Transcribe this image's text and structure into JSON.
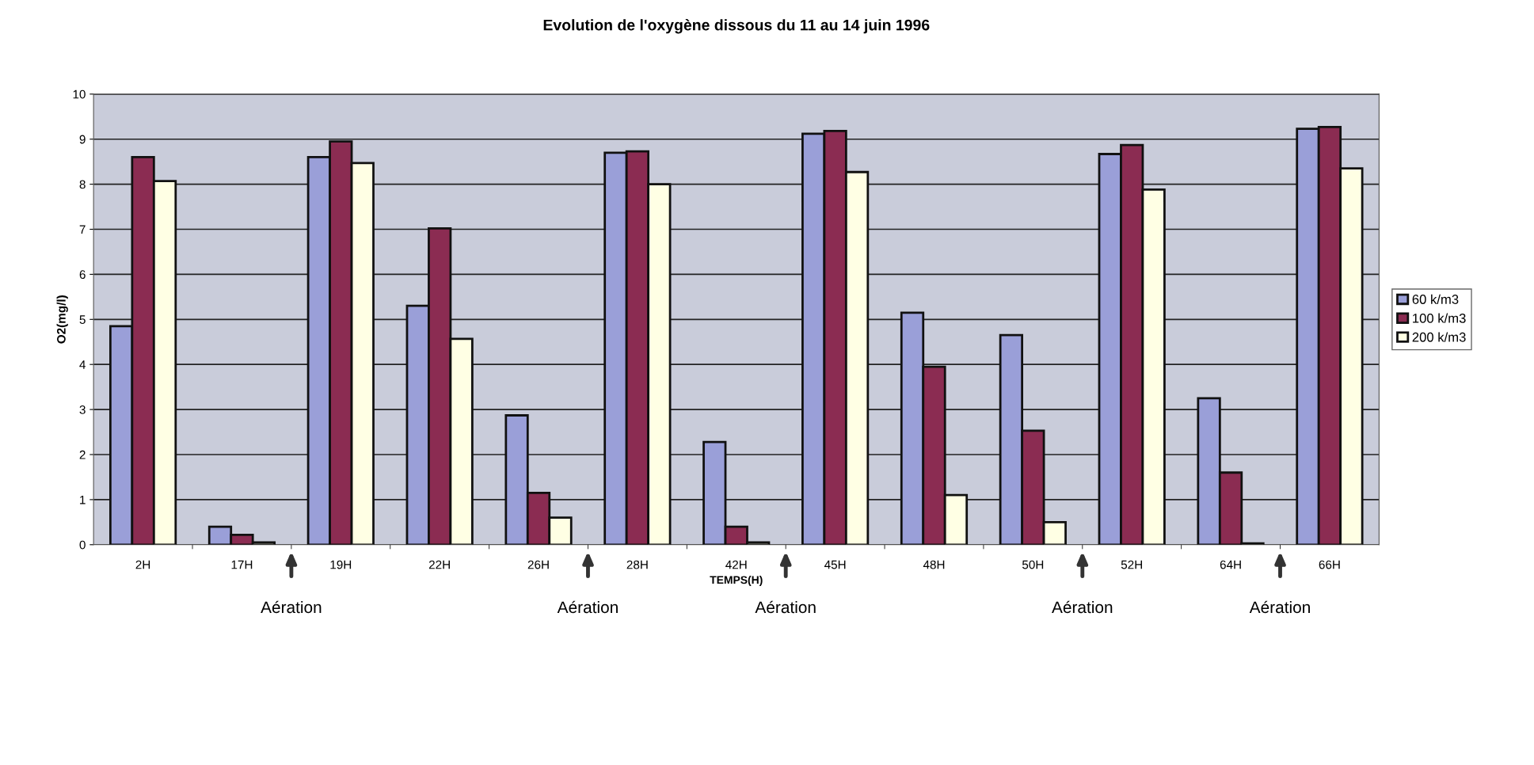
{
  "chart_data": {
    "type": "bar",
    "title": "Evolution de l'oxygène dissous du 11 au 14 juin 1996",
    "xlabel": "TEMPS(H)",
    "ylabel": "O2(mg/l)",
    "categories": [
      "2H",
      "17H",
      "19H",
      "22H",
      "26H",
      "28H",
      "42H",
      "45H",
      "48H",
      "50H",
      "52H",
      "64H",
      "66H"
    ],
    "series": [
      {
        "name": "60 k/m3",
        "color": "#9a9fd8",
        "values": [
          4.85,
          0.4,
          8.6,
          5.3,
          2.87,
          8.7,
          2.28,
          9.12,
          5.15,
          4.65,
          8.67,
          3.25,
          9.23
        ]
      },
      {
        "name": "100 k/m3",
        "color": "#8b2c52",
        "values": [
          8.6,
          0.22,
          8.95,
          7.02,
          1.15,
          8.73,
          0.4,
          9.18,
          3.95,
          2.53,
          8.87,
          1.6,
          9.27
        ]
      },
      {
        "name": "200 k/m3",
        "color": "#ffffe4",
        "values": [
          8.07,
          0.05,
          8.47,
          4.57,
          0.6,
          8.0,
          0.05,
          8.27,
          1.1,
          0.5,
          7.88,
          0.03,
          8.35
        ]
      }
    ],
    "ylim": [
      0,
      10
    ],
    "yticks": [
      0,
      1,
      2,
      3,
      4,
      5,
      6,
      7,
      8,
      9,
      10
    ],
    "grid": "y",
    "legend": "right",
    "annotations": [
      "Aération",
      "Aération",
      "Aération",
      "Aération",
      "Aération"
    ]
  }
}
